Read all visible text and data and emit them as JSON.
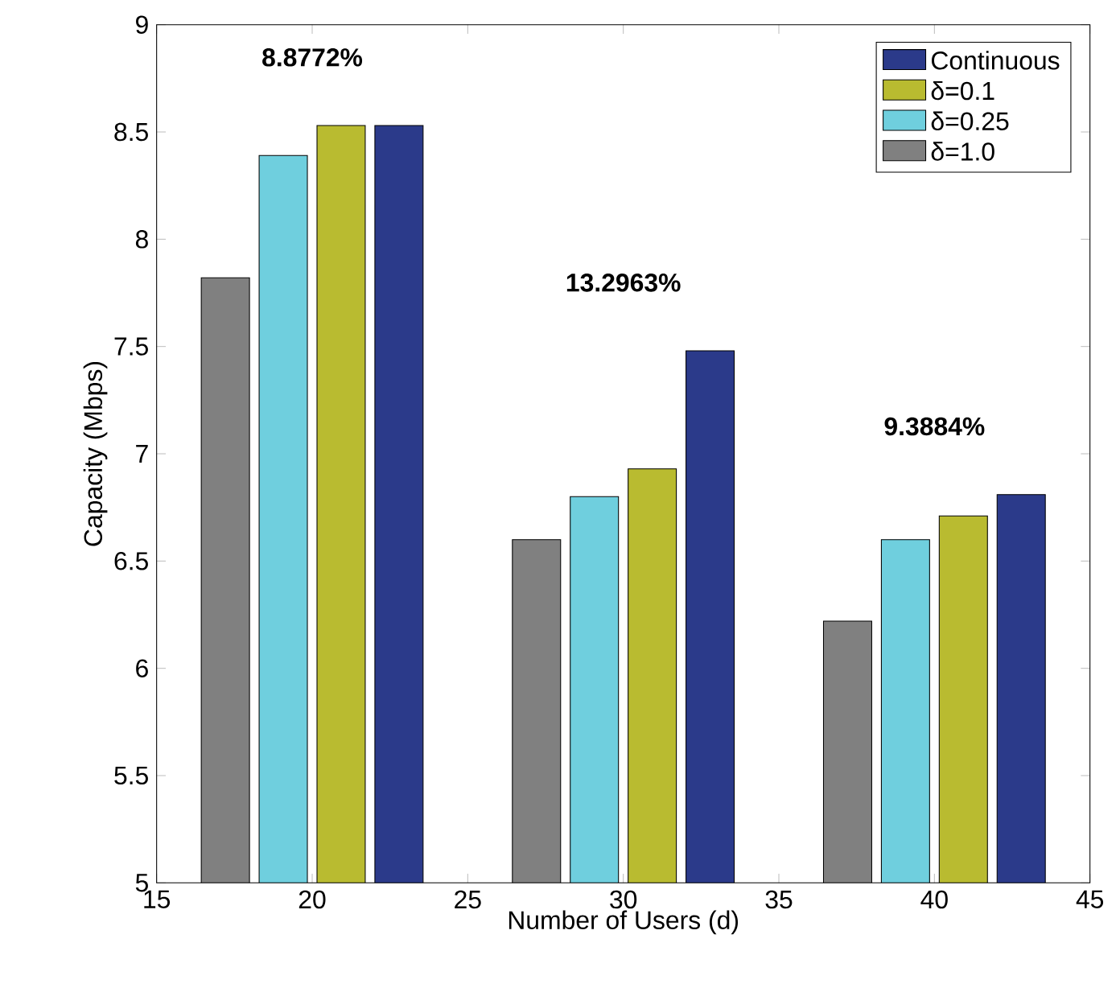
{
  "chart_data": {
    "type": "bar",
    "xlabel": "Number of Users (d)",
    "ylabel": "Capacity (Mbps)",
    "x": [
      20,
      30,
      40
    ],
    "series": [
      {
        "name": "Continuous",
        "color": "#2b3a8a",
        "values": [
          8.53,
          7.48,
          6.81
        ]
      },
      {
        "name": "δ=0.1",
        "color": "#b9bb30",
        "values": [
          8.53,
          6.93,
          6.71
        ]
      },
      {
        "name": "δ=0.25",
        "color": "#6fcfde",
        "values": [
          8.39,
          6.8,
          6.6
        ]
      },
      {
        "name": "δ=1.0",
        "color": "#808080",
        "values": [
          7.82,
          6.6,
          6.22
        ]
      }
    ],
    "xlim": [
      15,
      45
    ],
    "xticks": [
      15,
      20,
      25,
      30,
      35,
      40,
      45
    ],
    "ylim": [
      5,
      9
    ],
    "yticks": [
      5,
      5.5,
      6,
      6.5,
      7,
      7.5,
      8,
      8.5,
      9
    ],
    "legend": "top right",
    "grid": false,
    "annotations": [
      "**8.8772%**",
      "**13.2963%**",
      "**9.3884%**"
    ]
  }
}
